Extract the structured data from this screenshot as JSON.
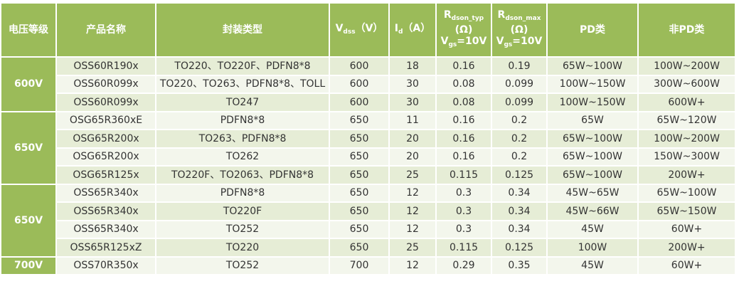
{
  "header": [
    {
      "text": "电压等级"
    },
    {
      "text": "产品名称"
    },
    {
      "text": "封装类型"
    },
    {
      "symbol": "V",
      "subscript": "dss",
      "unit": "（V）"
    },
    {
      "symbol": "I",
      "subscript": "d",
      "unit": "（A）"
    },
    {
      "symbol": "R",
      "subscript": "dson_typ",
      "unit": "(Ω)",
      "condition_symbol": "V",
      "condition_subscript": "gs",
      "condition_value": "=10V"
    },
    {
      "symbol": "R",
      "subscript": "dson_max",
      "unit": "(Ω)",
      "condition_symbol": "V",
      "condition_subscript": "gs",
      "condition_value": "=10V"
    },
    {
      "text": "PD类"
    },
    {
      "text": "非PD类"
    }
  ],
  "groups": [
    {
      "voltage": "600V",
      "rows": [
        [
          "OSS60R190x",
          "TO220、TO220F、PDFN8*8",
          "600",
          "18",
          "0.16",
          "0.19",
          "65W~100W",
          "100W~200W"
        ],
        [
          "OSS60R099x",
          "TO220、TO263、PDFN8*8、TOLL",
          "600",
          "30",
          "0.08",
          "0.099",
          "100W~150W",
          "300W~600W"
        ],
        [
          "OSS60R099x",
          "TO247",
          "600",
          "30",
          "0.08",
          "0.099",
          "100W~150W",
          "600W+"
        ]
      ]
    },
    {
      "voltage": "650V",
      "rows": [
        [
          "OSG65R360xE",
          "PDFN8*8",
          "650",
          "11",
          "0.16",
          "0.2",
          "65W",
          "65W~120W"
        ],
        [
          "OSG65R200x",
          "TO263、PDFN8*8",
          "650",
          "20",
          "0.16",
          "0.2",
          "65W~100W",
          "100W~200W"
        ],
        [
          "OSG65R200x",
          "TO262",
          "650",
          "20",
          "0.16",
          "0.2",
          "65W~100W",
          "150W~300W"
        ],
        [
          "OSG65R125x",
          "TO220F、TO2063、PDFN8*8",
          "650",
          "25",
          "0.115",
          "0.125",
          "65W~100W",
          "200W+"
        ]
      ]
    },
    {
      "voltage": "650V",
      "rows": [
        [
          "OSS65R340x",
          "PDFN8*8",
          "650",
          "12",
          "0.3",
          "0.34",
          "45W~65W",
          "65W~100W"
        ],
        [
          "OSS65R340x",
          "TO220F",
          "650",
          "12",
          "0.3",
          "0.34",
          "45W~66W",
          "65W~150W"
        ],
        [
          "OSS65R340x",
          "TO252",
          "650",
          "12",
          "0.3",
          "0.34",
          "45W",
          "60W+"
        ],
        [
          "OSS65R125xZ",
          "TO220",
          "650",
          "25",
          "0.115",
          "0.125",
          "100W",
          "200W+"
        ]
      ]
    },
    {
      "voltage": "700V",
      "rows": [
        [
          "OSS70R350x",
          "TO252",
          "700",
          "12",
          "0.29",
          "0.35",
          "45W",
          "60W+"
        ]
      ]
    }
  ]
}
